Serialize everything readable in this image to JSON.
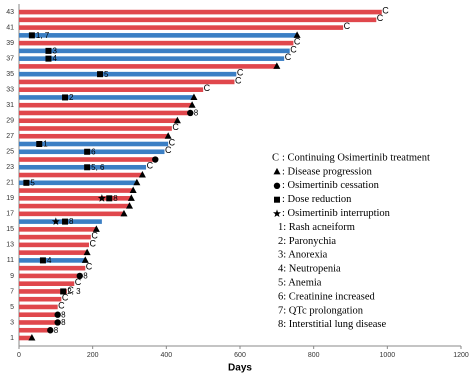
{
  "chart_data": {
    "type": "swimmer",
    "categories": [
      "1",
      null,
      "3",
      null,
      "5",
      null,
      "7",
      null,
      "9",
      null,
      "11",
      null,
      "13",
      null,
      "15",
      null,
      "17",
      null,
      "19",
      null,
      "21",
      null,
      "23",
      null,
      "25",
      null,
      "27",
      null,
      "29",
      null,
      "31",
      null,
      "33",
      null,
      "35",
      null,
      "37",
      null,
      "39",
      null,
      "41",
      null,
      "43"
    ],
    "colors": {
      "red": "#e0474c",
      "blue": "#3b7fc4"
    },
    "bars": [
      {
        "value": 35,
        "color": "red",
        "end": "triangle"
      },
      {
        "value": 85,
        "color": "red",
        "end": "circle",
        "end_label": "8"
      },
      {
        "value": 105,
        "color": "red",
        "end": "circle",
        "end_label": "8"
      },
      {
        "value": 105,
        "color": "red",
        "end": "circle",
        "end_label": "8"
      },
      {
        "value": 105,
        "color": "red",
        "end": "C"
      },
      {
        "value": 115,
        "color": "red",
        "end": "C"
      },
      {
        "value": 130,
        "color": "red",
        "end": "C",
        "events": [
          {
            "x": 120,
            "symbol": "square",
            "label": "2, 3"
          }
        ]
      },
      {
        "value": 150,
        "color": "red",
        "end": "C"
      },
      {
        "value": 165,
        "color": "red",
        "end": "circle",
        "end_label": "8"
      },
      {
        "value": 180,
        "color": "red",
        "end": "C"
      },
      {
        "value": 180,
        "color": "blue",
        "end": "triangle",
        "events": [
          {
            "x": 65,
            "symbol": "square",
            "label": "4"
          }
        ]
      },
      {
        "value": 185,
        "color": "red",
        "end": "triangle"
      },
      {
        "value": 190,
        "color": "red",
        "end": "C"
      },
      {
        "value": 195,
        "color": "red",
        "end": "C"
      },
      {
        "value": 210,
        "color": "red",
        "end": "triangle"
      },
      {
        "value": 225,
        "color": "blue",
        "events": [
          {
            "x": 100,
            "symbol": "star"
          },
          {
            "x": 125,
            "symbol": "square",
            "label": "8"
          }
        ]
      },
      {
        "value": 285,
        "color": "red",
        "end": "triangle"
      },
      {
        "value": 300,
        "color": "red",
        "end": "triangle"
      },
      {
        "value": 305,
        "color": "red",
        "end": "triangle",
        "events": [
          {
            "x": 225,
            "symbol": "star"
          },
          {
            "x": 245,
            "symbol": "square",
            "label": "8"
          }
        ]
      },
      {
        "value": 310,
        "color": "red",
        "end": "triangle"
      },
      {
        "value": 320,
        "color": "blue",
        "end": "triangle",
        "events": [
          {
            "x": 20,
            "symbol": "square",
            "label": "5"
          }
        ]
      },
      {
        "value": 335,
        "color": "red",
        "end": "triangle"
      },
      {
        "value": 345,
        "color": "blue",
        "end": "C",
        "events": [
          {
            "x": 185,
            "symbol": "square",
            "label": "5, 6"
          }
        ]
      },
      {
        "value": 370,
        "color": "red",
        "end": "circle"
      },
      {
        "value": 395,
        "color": "blue",
        "end": "C",
        "events": [
          {
            "x": 185,
            "symbol": "square",
            "label": "6"
          }
        ]
      },
      {
        "value": 405,
        "color": "blue",
        "end": "C",
        "events": [
          {
            "x": 55,
            "symbol": "square",
            "label": "1"
          }
        ]
      },
      {
        "value": 405,
        "color": "red",
        "end": "triangle"
      },
      {
        "value": 415,
        "color": "red",
        "end": "C"
      },
      {
        "value": 430,
        "color": "red",
        "end": "triangle"
      },
      {
        "value": 465,
        "color": "red",
        "end": "circle",
        "end_label": "8"
      },
      {
        "value": 470,
        "color": "red",
        "end": "triangle"
      },
      {
        "value": 475,
        "color": "blue",
        "end": "triangle",
        "events": [
          {
            "x": 125,
            "symbol": "square",
            "label": "2"
          }
        ]
      },
      {
        "value": 500,
        "color": "red",
        "end": "C"
      },
      {
        "value": 585,
        "color": "red",
        "end": "C"
      },
      {
        "value": 590,
        "color": "blue",
        "end": "C",
        "events": [
          {
            "x": 220,
            "symbol": "square",
            "label": "5"
          }
        ]
      },
      {
        "value": 700,
        "color": "red",
        "end": "triangle"
      },
      {
        "value": 720,
        "color": "blue",
        "end": "C",
        "events": [
          {
            "x": 80,
            "symbol": "square",
            "label": "4"
          }
        ]
      },
      {
        "value": 735,
        "color": "blue",
        "end": "C",
        "events": [
          {
            "x": 80,
            "symbol": "square",
            "label": "3"
          }
        ]
      },
      {
        "value": 745,
        "color": "red",
        "end": "C"
      },
      {
        "value": 755,
        "color": "blue",
        "end": "triangle",
        "events": [
          {
            "x": 35,
            "symbol": "square",
            "label": "1, 7"
          }
        ]
      },
      {
        "value": 880,
        "color": "red",
        "end": "C"
      },
      {
        "value": 970,
        "color": "red",
        "end": "C"
      },
      {
        "value": 985,
        "color": "red",
        "end": "C"
      }
    ],
    "xlim": [
      0,
      1200
    ],
    "xticks": [
      0,
      200,
      400,
      600,
      800,
      1000,
      1200
    ],
    "xlabel": "Days",
    "legend": [
      {
        "symbol": "C",
        "text": " : Continuing Osimertinib treatment"
      },
      {
        "symbol": "triangle",
        "text": ": Disease progression"
      },
      {
        "symbol": "circle",
        "text": ": Osimertinib cessation"
      },
      {
        "symbol": "square",
        "text": ": Dose reduction"
      },
      {
        "symbol": "star",
        "text": ": Osimertinib interruption"
      },
      {
        "text": "1: Rash acneiform"
      },
      {
        "text": "2: Paronychia"
      },
      {
        "text": "3: Anorexia"
      },
      {
        "text": "4: Neutropenia"
      },
      {
        "text": "5: Anemia"
      },
      {
        "text": "6: Creatinine increased"
      },
      {
        "text": "7: QTc prolongation"
      },
      {
        "text": "8: Interstitial lung disease"
      }
    ]
  }
}
